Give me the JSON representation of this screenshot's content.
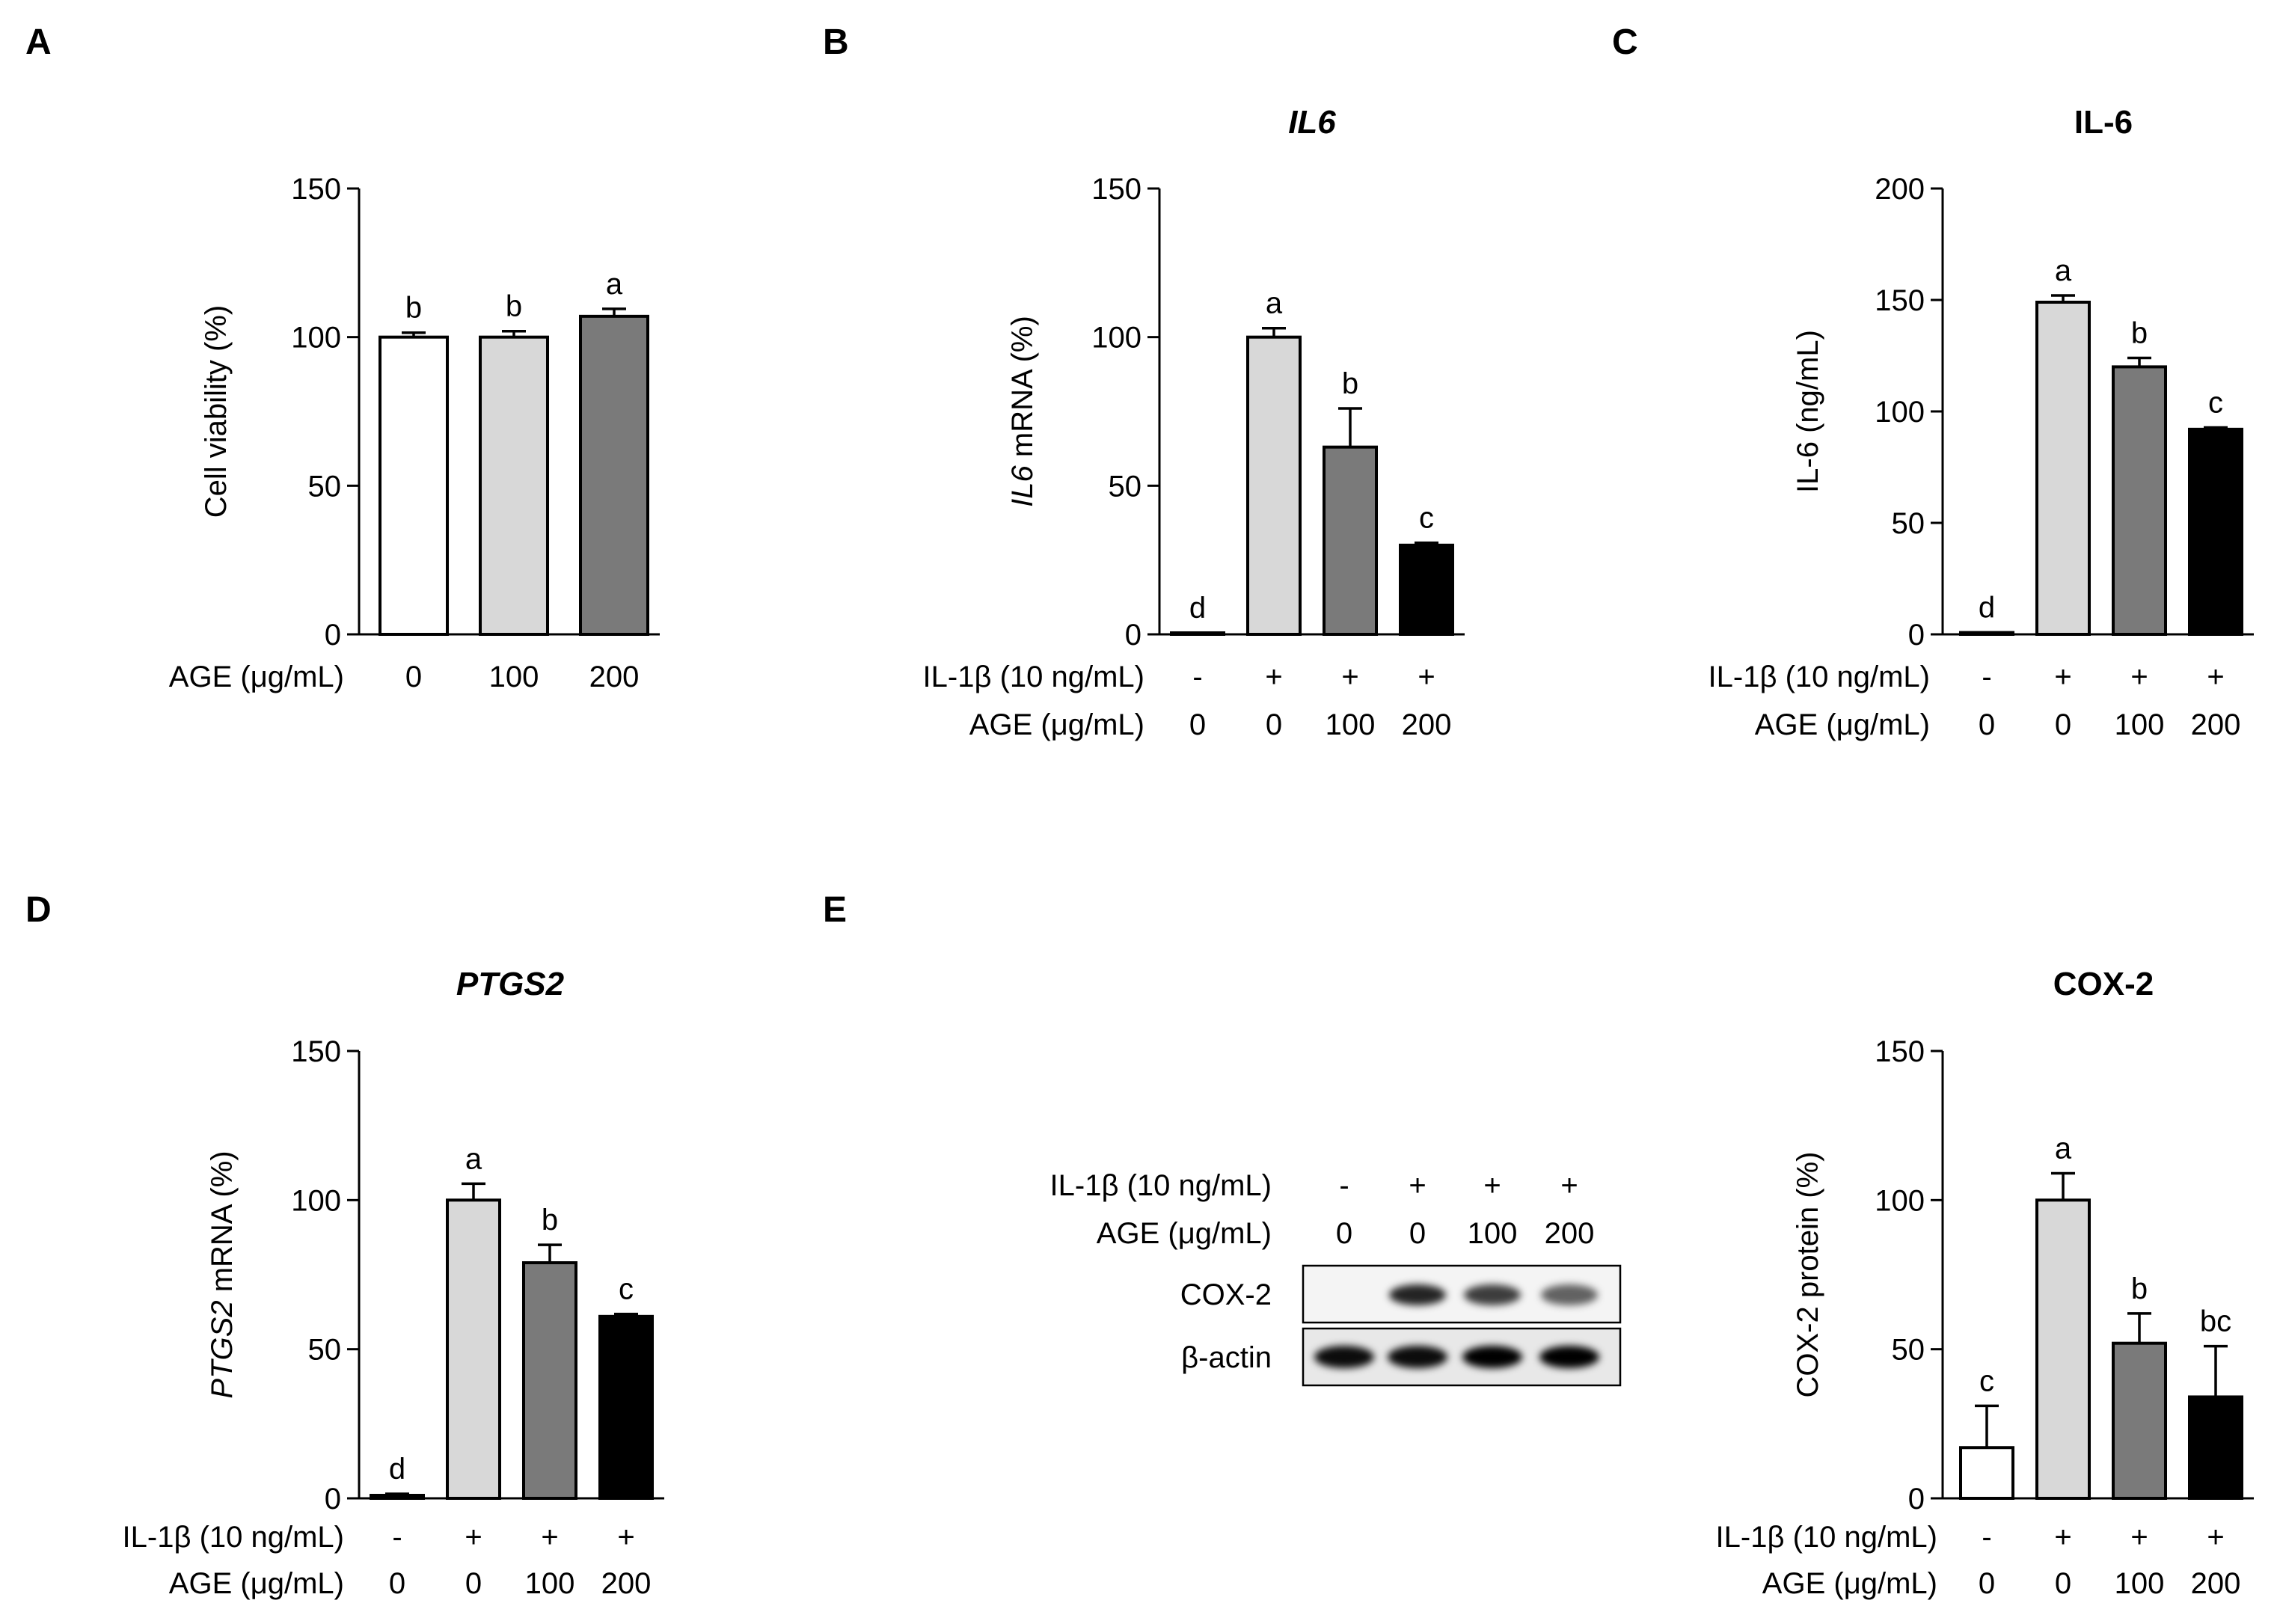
{
  "chart_data": [
    {
      "panel": "A",
      "type": "bar",
      "title": "",
      "ylabel": "Cell viability (%)",
      "ylim": [
        0,
        150
      ],
      "yticks": [
        0,
        50,
        100,
        150
      ],
      "condition_rows": [
        {
          "label": "AGE (μg/mL)",
          "values": [
            "0",
            "100",
            "200"
          ]
        }
      ],
      "values": [
        100,
        100,
        107
      ],
      "errors": [
        1.5,
        2,
        2.5
      ],
      "letters": [
        "b",
        "b",
        "a"
      ],
      "colors": [
        "#ffffff",
        "#d8d8d8",
        "#7a7a7a"
      ]
    },
    {
      "panel": "B",
      "type": "bar",
      "title": "IL6",
      "ylabel_italic": "IL6",
      "ylabel_rest": " mRNA (%)",
      "ylim": [
        0,
        150
      ],
      "yticks": [
        0,
        50,
        100,
        150
      ],
      "condition_rows": [
        {
          "label": "IL-1β (10 ng/mL)",
          "values": [
            "-",
            "+",
            "+",
            "+"
          ]
        },
        {
          "label": "AGE (μg/mL)",
          "values": [
            "0",
            "0",
            "100",
            "200"
          ]
        }
      ],
      "values": [
        0.5,
        100,
        63,
        30
      ],
      "errors": [
        0,
        3,
        13,
        0.8
      ],
      "letters": [
        "d",
        "a",
        "b",
        "c"
      ],
      "colors": [
        "#ffffff",
        "#d8d8d8",
        "#7a7a7a",
        "#000000"
      ]
    },
    {
      "panel": "C",
      "type": "bar",
      "title": "IL-6",
      "ylabel": "IL-6 (ng/mL)",
      "ylim": [
        0,
        200
      ],
      "yticks": [
        0,
        50,
        100,
        150,
        200
      ],
      "condition_rows": [
        {
          "label": "IL-1β (10 ng/mL)",
          "values": [
            "-",
            "+",
            "+",
            "+"
          ]
        },
        {
          "label": "AGE (μg/mL)",
          "values": [
            "0",
            "0",
            "100",
            "200"
          ]
        }
      ],
      "values": [
        0.8,
        149,
        120,
        92
      ],
      "errors": [
        0,
        3,
        4,
        0.8
      ],
      "letters": [
        "d",
        "a",
        "b",
        "c"
      ],
      "colors": [
        "#ffffff",
        "#d8d8d8",
        "#7a7a7a",
        "#000000"
      ]
    },
    {
      "panel": "D",
      "type": "bar",
      "title": "PTGS2",
      "ylabel_italic": "PTGS2",
      "ylabel_rest": " mRNA (%)",
      "ylim": [
        0,
        150
      ],
      "yticks": [
        0,
        50,
        100,
        150
      ],
      "condition_rows": [
        {
          "label": "IL-1β (10 ng/mL)",
          "values": [
            "-",
            "+",
            "+",
            "+"
          ]
        },
        {
          "label": "AGE (μg/mL)",
          "values": [
            "0",
            "0",
            "100",
            "200"
          ]
        }
      ],
      "values": [
        1,
        100,
        79,
        61
      ],
      "errors": [
        0.5,
        5.5,
        6,
        0.8
      ],
      "letters": [
        "d",
        "a",
        "b",
        "c"
      ],
      "colors": [
        "#ffffff",
        "#d8d8d8",
        "#7a7a7a",
        "#000000"
      ]
    },
    {
      "panel": "E",
      "type": "bar",
      "title": "COX-2",
      "ylabel": "COX-2 protein (%)",
      "ylim": [
        0,
        150
      ],
      "yticks": [
        0,
        50,
        100,
        150
      ],
      "condition_rows": [
        {
          "label": "IL-1β (10 ng/mL)",
          "values": [
            "-",
            "+",
            "+",
            "+"
          ]
        },
        {
          "label": "AGE (μg/mL)",
          "values": [
            "0",
            "0",
            "100",
            "200"
          ]
        }
      ],
      "values": [
        17,
        100,
        52,
        34
      ],
      "errors": [
        14,
        9,
        10,
        17
      ],
      "letters": [
        "c",
        "a",
        "b",
        "bc"
      ],
      "colors": [
        "#ffffff",
        "#d8d8d8",
        "#7a7a7a",
        "#000000"
      ]
    }
  ],
  "western_blot": {
    "condition_rows": [
      {
        "label": "IL-1β (10 ng/mL)",
        "values": [
          "-",
          "+",
          "+",
          "+"
        ]
      },
      {
        "label": "AGE (μg/mL)",
        "values": [
          "0",
          "0",
          "100",
          "200"
        ]
      }
    ],
    "band_labels": [
      "COX-2",
      "β-actin"
    ],
    "cox2_band_intensity": [
      0,
      0.85,
      0.75,
      0.6
    ],
    "actin_band_intensity": [
      0.95,
      0.95,
      1,
      1
    ]
  }
}
